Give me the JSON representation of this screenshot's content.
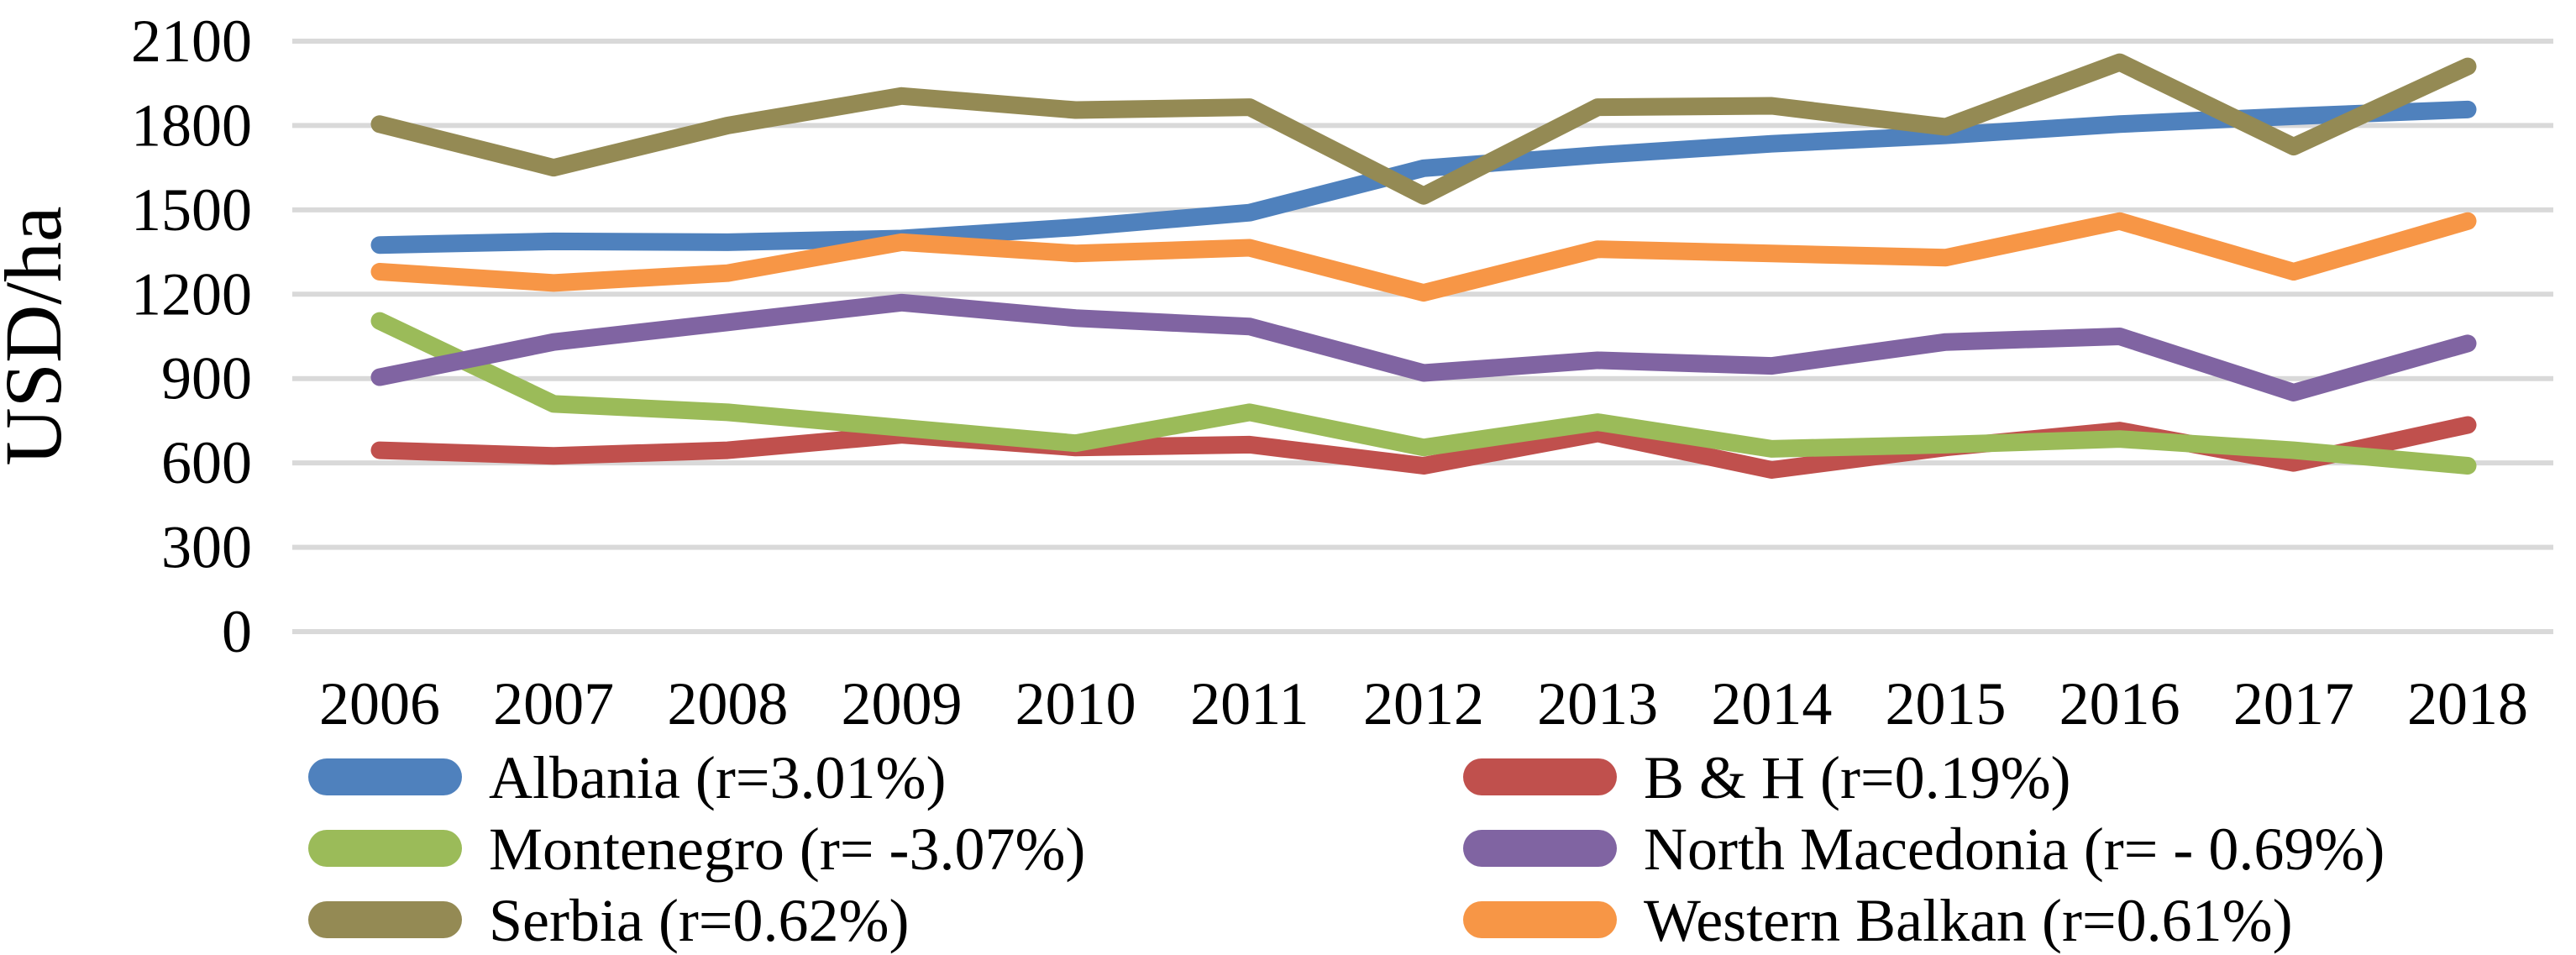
{
  "chart_data": {
    "type": "line",
    "title": "",
    "xlabel": "",
    "ylabel": "USD/ha",
    "ylim": [
      0,
      2100
    ],
    "yticks": [
      0,
      300,
      600,
      900,
      1200,
      1500,
      1800,
      2100
    ],
    "grid": true,
    "gridline_color": "#D9D9D9",
    "text_color": "#000000",
    "background_color": "#FFFFFF",
    "legend_position": "bottom, two columns",
    "x": [
      "2006",
      "2007",
      "2008",
      "2009",
      "2010",
      "2011",
      "2012",
      "2013",
      "2014",
      "2015",
      "2016",
      "2017",
      "2018"
    ],
    "series": [
      {
        "name": "Albania (r=3.01%)",
        "color": "#4F81BD",
        "values": [
          1375,
          1388,
          1385,
          1398,
          1438,
          1490,
          1648,
          1695,
          1735,
          1765,
          1805,
          1833,
          1857
        ]
      },
      {
        "name": "B & H (r=0.19%)",
        "color": "#C0504D",
        "values": [
          645,
          625,
          645,
          700,
          655,
          665,
          590,
          705,
          575,
          655,
          715,
          600,
          735
        ]
      },
      {
        "name": "Montenegro (r= -3.07%)",
        "color": "#9BBB59",
        "values": [
          1105,
          810,
          780,
          725,
          670,
          780,
          655,
          745,
          650,
          665,
          685,
          645,
          590
        ]
      },
      {
        "name": "North Macedonia (r= - 0.69%)",
        "color": "#8064A2",
        "values": [
          905,
          1030,
          1100,
          1170,
          1115,
          1085,
          920,
          965,
          945,
          1030,
          1050,
          850,
          1025
        ]
      },
      {
        "name": "Serbia (r=0.62%)",
        "color": "#948A54",
        "values": [
          1805,
          1650,
          1800,
          1905,
          1855,
          1865,
          1550,
          1865,
          1870,
          1795,
          2025,
          1725,
          2010
        ]
      },
      {
        "name": "Western Balkan (r=0.61%)",
        "color": "#F79646",
        "values": [
          1280,
          1240,
          1275,
          1385,
          1345,
          1365,
          1205,
          1360,
          1345,
          1330,
          1460,
          1280,
          1460
        ]
      }
    ],
    "legend_columns": [
      [
        0,
        2,
        4
      ],
      [
        1,
        3,
        5
      ]
    ]
  }
}
